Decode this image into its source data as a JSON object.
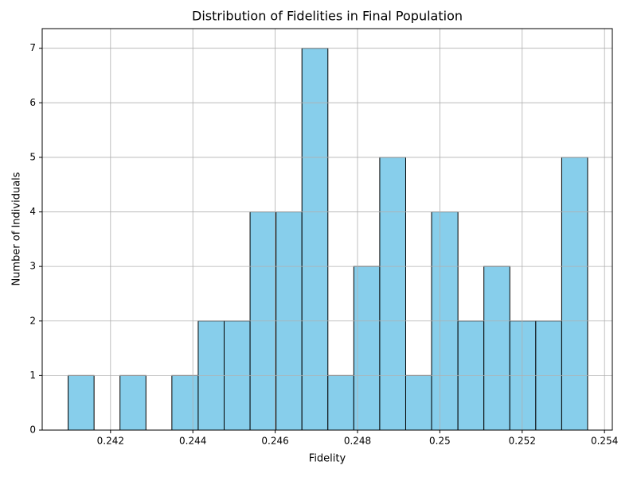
{
  "chart_data": {
    "type": "histogram",
    "title": "Distribution of Fidelities in Final Population",
    "x_label": "Fidelity",
    "y_label": "Number of Individuals",
    "bins": [
      0.24097,
      0.2416,
      0.24223,
      0.24286,
      0.24349,
      0.24413,
      0.24476,
      0.24539,
      0.24602,
      0.24665,
      0.24728,
      0.24791,
      0.24854,
      0.24917,
      0.2498,
      0.25044,
      0.25107,
      0.2517,
      0.25233,
      0.25296,
      0.25359
    ],
    "values": [
      1,
      0,
      1,
      0,
      1,
      2,
      2,
      4,
      4,
      7,
      1,
      3,
      5,
      1,
      4,
      2,
      3,
      2,
      2,
      5
    ],
    "color": "#87ceeb",
    "edgecolor": "#000000",
    "xlim": [
      0.24034,
      0.25419
    ],
    "xticks": [
      0.242,
      0.244,
      0.246,
      0.248,
      0.25,
      0.252,
      0.254
    ],
    "ylim": [
      0,
      7.36
    ],
    "yticks": [
      0,
      1,
      2,
      3,
      4,
      5,
      6,
      7
    ],
    "grid": true
  }
}
